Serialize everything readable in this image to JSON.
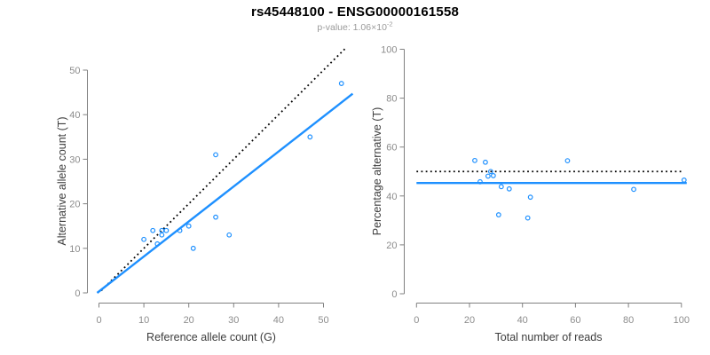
{
  "figure": {
    "title": "rs45448100 - ENSG00000161558",
    "subtitle": {
      "base": "p-value: 1.06×10",
      "exponent": "-2"
    },
    "colors": {
      "accent_blue": "#1E90FF",
      "reference_black": "#000000",
      "axis_gray": "#808080",
      "tick_label_gray": "#8c8c8c",
      "subtitle_gray": "#9a9a9a",
      "axis_title_dark": "#3d3d3d",
      "background": "#ffffff"
    }
  },
  "chart_data": [
    {
      "type": "scatter",
      "panel": "left",
      "xlabel": "Reference allele count (G)",
      "ylabel": "Alternative allele count (T)",
      "xlim": [
        0,
        56
      ],
      "ylim": [
        0,
        55
      ],
      "xticks": [
        0,
        10,
        20,
        30,
        40,
        50
      ],
      "yticks": [
        0,
        10,
        20,
        30,
        40,
        50
      ],
      "grid": false,
      "legend": "none",
      "marker": {
        "shape": "open-circle",
        "color": "#1E90FF",
        "radius": 2.3
      },
      "points": [
        [
          10,
          12
        ],
        [
          12,
          14
        ],
        [
          13,
          11
        ],
        [
          14,
          13
        ],
        [
          14,
          14
        ],
        [
          15,
          14
        ],
        [
          18,
          14
        ],
        [
          20,
          15
        ],
        [
          21,
          10
        ],
        [
          26,
          17
        ],
        [
          26,
          31
        ],
        [
          29,
          13
        ],
        [
          47,
          35
        ],
        [
          54,
          47
        ]
      ],
      "lines": [
        {
          "name": "identity-line",
          "x1": 0.5,
          "y1": 0.5,
          "x2": 55,
          "y2": 55,
          "style": "dotted",
          "color": "#000000",
          "width": 1.8
        },
        {
          "name": "fit-line",
          "x1": -0.4,
          "y1": 0,
          "x2": 56.5,
          "y2": 44.7,
          "style": "solid",
          "color": "#1E90FF",
          "width": 2.4
        }
      ]
    },
    {
      "type": "scatter",
      "panel": "right",
      "xlabel": "Total number of reads",
      "ylabel": "Percentage alternative (T)",
      "xlim": [
        0,
        102
      ],
      "ylim": [
        0,
        100
      ],
      "xticks": [
        0,
        20,
        40,
        60,
        80,
        100
      ],
      "yticks": [
        0,
        20,
        40,
        60,
        80,
        100
      ],
      "grid": false,
      "legend": "none",
      "marker": {
        "shape": "open-circle",
        "color": "#1E90FF",
        "radius": 2.3
      },
      "points": [
        [
          22,
          54.5
        ],
        [
          24,
          45.8
        ],
        [
          26,
          53.8
        ],
        [
          27,
          48.1
        ],
        [
          28,
          50.0
        ],
        [
          29,
          48.3
        ],
        [
          31,
          32.3
        ],
        [
          32,
          43.8
        ],
        [
          35,
          42.9
        ],
        [
          42,
          31.0
        ],
        [
          43,
          39.5
        ],
        [
          57,
          54.4
        ],
        [
          82,
          42.7
        ],
        [
          101,
          46.5
        ]
      ],
      "lines": [
        {
          "name": "reference-line",
          "x1": 0,
          "y1": 50,
          "x2": 100,
          "y2": 50,
          "style": "dotted",
          "color": "#000000",
          "width": 1.8
        },
        {
          "name": "fit-line",
          "x1": 0,
          "y1": 45.3,
          "x2": 102,
          "y2": 45.3,
          "style": "solid",
          "color": "#1E90FF",
          "width": 2.4
        }
      ]
    }
  ]
}
